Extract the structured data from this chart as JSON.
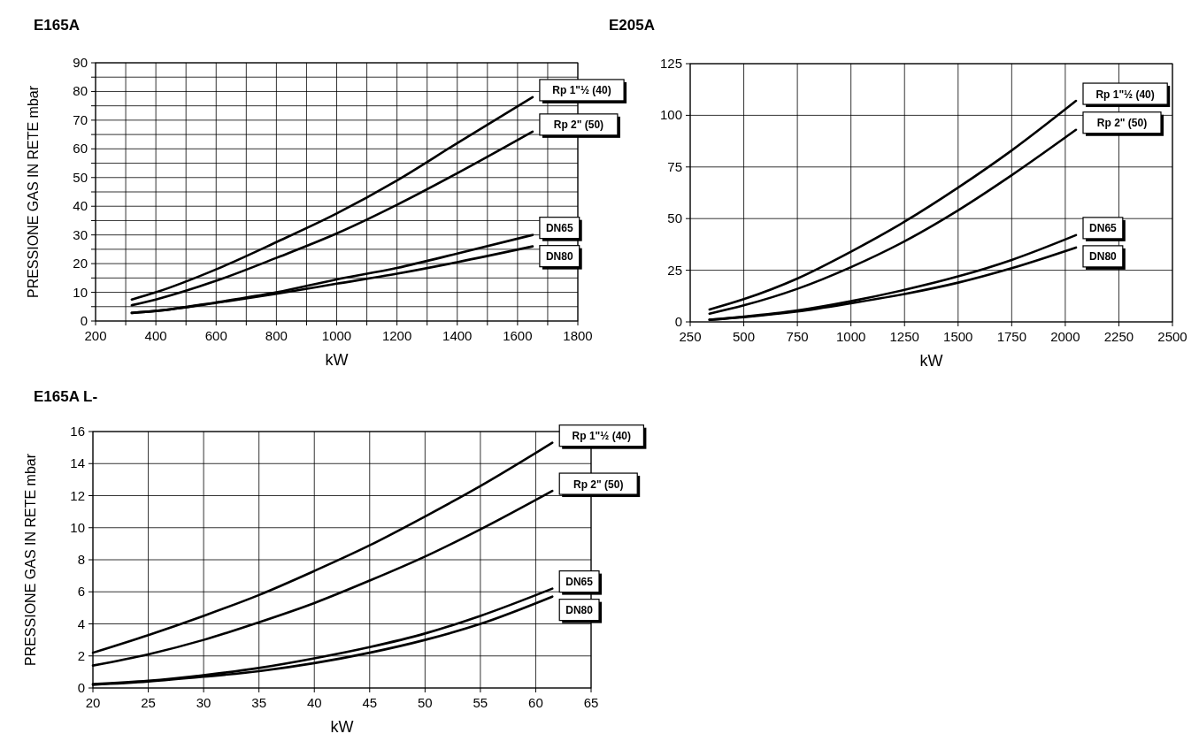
{
  "chart_data": [
    {
      "type": "line",
      "title": "E165A",
      "xlabel": "kW",
      "ylabel": "PRESSIONE GAS IN RETE mbar",
      "grid": true,
      "marker": "none",
      "line_style": "solid",
      "xlim": [
        200,
        1800
      ],
      "ylim": [
        0,
        90
      ],
      "xticks": [
        200,
        {
          "value": 300,
          "label": null
        },
        400,
        {
          "value": 500,
          "label": null
        },
        600,
        {
          "value": 700,
          "label": null
        },
        800,
        {
          "value": 900,
          "label": null
        },
        1000,
        {
          "value": 1100,
          "label": null
        },
        1200,
        {
          "value": 1300,
          "label": null
        },
        1400,
        {
          "value": 1500,
          "label": null
        },
        1600,
        {
          "value": 1700,
          "label": null
        },
        1800
      ],
      "yticks": [
        0,
        {
          "value": 5,
          "label": null
        },
        10,
        {
          "value": 15,
          "label": null
        },
        20,
        {
          "value": 25,
          "label": null
        },
        30,
        {
          "value": 35,
          "label": null
        },
        40,
        {
          "value": 45,
          "label": null
        },
        50,
        {
          "value": 55,
          "label": null
        },
        60,
        {
          "value": 65,
          "label": null
        },
        70,
        {
          "value": 75,
          "label": null
        },
        80,
        {
          "value": 85,
          "label": null
        },
        90
      ],
      "x": [
        320,
        400,
        600,
        800,
        1000,
        1200,
        1400,
        1650
      ],
      "series": [
        {
          "name": "Rp 1\"½ (40)",
          "color": "#000000",
          "values": [
            7.5,
            10,
            18,
            27.5,
            37.5,
            49,
            62,
            78
          ]
        },
        {
          "name": "Rp 2\" (50)",
          "color": "#000000",
          "values": [
            5.5,
            7.5,
            14,
            22,
            30.5,
            40.5,
            51.5,
            66
          ]
        },
        {
          "name": "DN65",
          "color": "#000000",
          "values": [
            2.8,
            3.5,
            6.5,
            10,
            14.5,
            18.5,
            23.5,
            30
          ]
        },
        {
          "name": "DN80",
          "color": "#000000",
          "values": [
            2.8,
            3.5,
            6.3,
            9.5,
            13,
            16.5,
            20.5,
            26
          ]
        }
      ]
    },
    {
      "type": "line",
      "title": "E205A",
      "xlabel": "kW",
      "grid": true,
      "marker": "none",
      "line_style": "solid",
      "xlim": [
        250,
        2500
      ],
      "ylim": [
        0,
        125
      ],
      "xticks": [
        250,
        500,
        750,
        1000,
        1250,
        1500,
        1750,
        2000,
        2250,
        2500
      ],
      "yticks": [
        0,
        25,
        50,
        75,
        100,
        125
      ],
      "x": [
        340,
        500,
        750,
        1000,
        1250,
        1500,
        1750,
        2050
      ],
      "series": [
        {
          "name": "Rp 1\"½ (40)",
          "color": "#000000",
          "values": [
            6,
            11,
            21,
            34,
            48.5,
            65,
            83,
            107
          ]
        },
        {
          "name": "Rp 2\" (50)",
          "color": "#000000",
          "values": [
            4,
            8,
            16,
            26.5,
            39,
            54,
            71,
            93
          ]
        },
        {
          "name": "DN65",
          "color": "#000000",
          "values": [
            1,
            2.5,
            5.5,
            10,
            15.5,
            22,
            30,
            42
          ]
        },
        {
          "name": "DN80",
          "color": "#000000",
          "values": [
            1,
            2.3,
            5,
            9,
            13.5,
            19,
            26,
            36
          ]
        }
      ]
    },
    {
      "type": "line",
      "title": "E165A  L-",
      "xlabel": "kW",
      "ylabel": "PRESSIONE GAS IN RETE mbar",
      "grid": true,
      "marker": "none",
      "line_style": "solid",
      "xlim": [
        20,
        65
      ],
      "ylim": [
        0,
        16
      ],
      "xticks": [
        20,
        25,
        30,
        35,
        40,
        45,
        50,
        55,
        60,
        65
      ],
      "yticks": [
        0,
        2,
        4,
        6,
        8,
        10,
        12,
        14,
        16
      ],
      "x": [
        20,
        25,
        30,
        35,
        40,
        45,
        50,
        55,
        61.5
      ],
      "series": [
        {
          "name": "Rp 1\"½ (40)",
          "color": "#000000",
          "values": [
            2.2,
            3.3,
            4.5,
            5.8,
            7.3,
            8.9,
            10.7,
            12.6,
            15.3
          ]
        },
        {
          "name": "Rp 2\" (50)",
          "color": "#000000",
          "values": [
            1.4,
            2.1,
            3.0,
            4.1,
            5.3,
            6.7,
            8.2,
            9.9,
            12.3
          ]
        },
        {
          "name": "DN65",
          "color": "#000000",
          "values": [
            0.25,
            0.45,
            0.8,
            1.25,
            1.85,
            2.55,
            3.4,
            4.5,
            6.2
          ]
        },
        {
          "name": "DN80",
          "color": "#000000",
          "values": [
            0.2,
            0.4,
            0.7,
            1.05,
            1.55,
            2.2,
            3.0,
            4.0,
            5.7
          ]
        }
      ]
    }
  ]
}
